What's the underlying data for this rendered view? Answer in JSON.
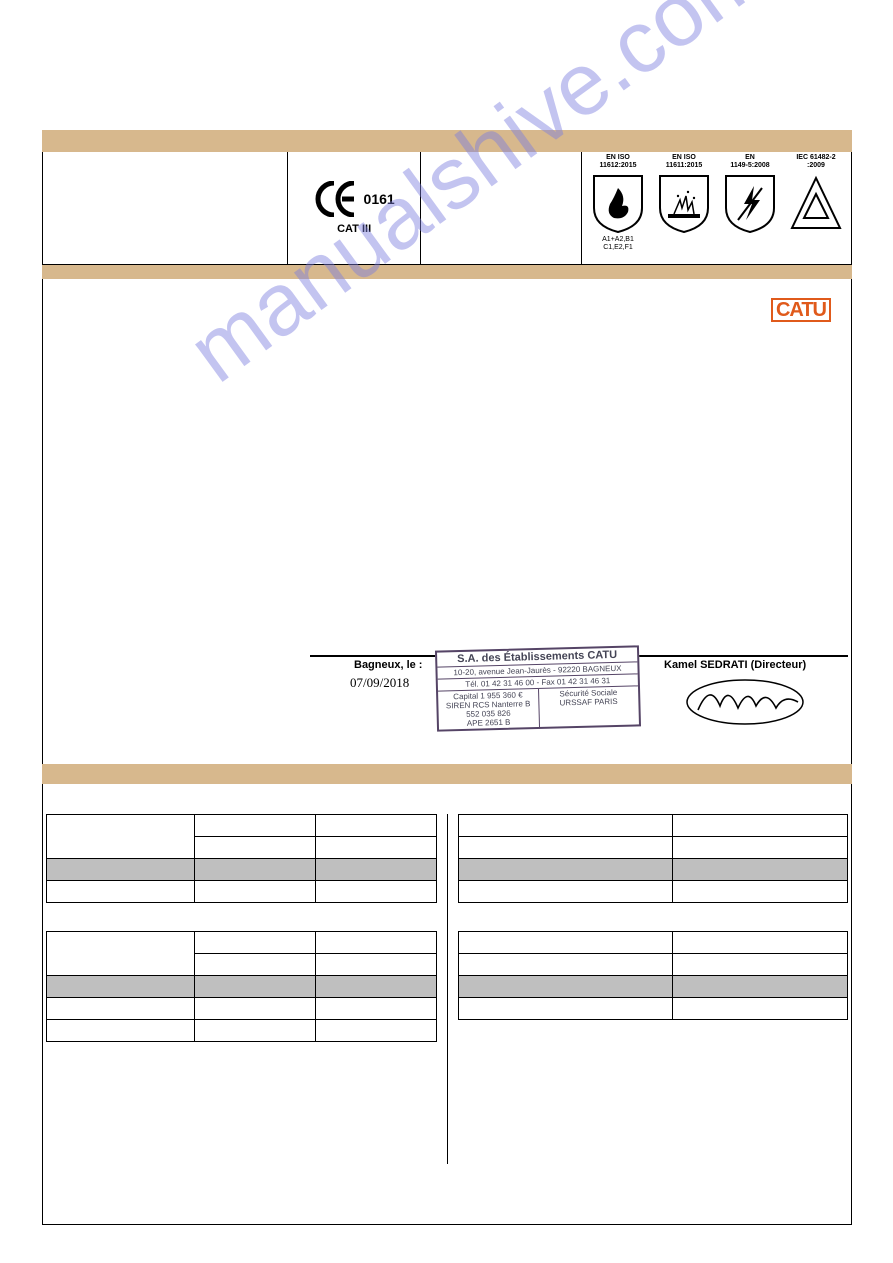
{
  "colors": {
    "tan": "#d7b88d",
    "logo": "#e05a1b",
    "watermark": "#7c7ee0",
    "grey_row": "#bfbfbf",
    "black": "#000000",
    "white": "#ffffff"
  },
  "header": {
    "ce_number": "0161",
    "ce_category": "CAT III",
    "icons": [
      {
        "standard": "EN ISO\n11612:2015",
        "glyph": "flame",
        "sub": "A1+A2,B1\nC1,E2,F1"
      },
      {
        "standard": "EN ISO\n11611:2015",
        "glyph": "welding",
        "sub": ""
      },
      {
        "standard": "EN\n1149-5:2008",
        "glyph": "antistatic",
        "sub": ""
      },
      {
        "standard": "IEC 61482-2\n:2009",
        "glyph": "arc",
        "sub": ""
      }
    ]
  },
  "logo_text": "CATU",
  "watermark_text": "manualshive.com",
  "signature": {
    "place_label": "Bagneux, le :",
    "date": "07/09/2018",
    "role": "Kamel SEDRATI (Directeur)",
    "stamp": {
      "company": "S.A. des Établissements CATU",
      "address": "10-20, avenue Jean-Jaurès - 92220 BAGNEUX",
      "phone": "Tél. 01 42 31 46 00 - Fax 01 42 31 46 31",
      "left": "Capital 1 955 360 €\nSIREN RCS Nanterre B 552 035 826\nAPE 2651 B",
      "right": "Sécurité Sociale\nURSSAF PARIS"
    }
  },
  "tables": {
    "t1": {
      "type": "table",
      "cols": 3,
      "rows": [
        [
          "",
          "",
          ""
        ],
        [
          "",
          "",
          ""
        ],
        [
          "",
          "",
          ""
        ],
        [
          "",
          "",
          ""
        ]
      ],
      "shaded_row_index": 2,
      "merged_first_col_top": true
    },
    "t2": {
      "type": "table",
      "cols": 2,
      "rows": [
        [
          "",
          ""
        ],
        [
          "",
          ""
        ],
        [
          "",
          ""
        ],
        [
          "",
          ""
        ]
      ],
      "shaded_row_index": 2,
      "merged_first_col_top": false
    },
    "t3": {
      "type": "table",
      "cols": 3,
      "rows": [
        [
          "",
          "",
          ""
        ],
        [
          "",
          "",
          ""
        ],
        [
          "",
          "",
          ""
        ],
        [
          "",
          "",
          ""
        ],
        [
          "",
          "",
          ""
        ]
      ],
      "shaded_row_index": 2,
      "merged_first_col_top": true
    },
    "t4": {
      "type": "table",
      "cols": 2,
      "rows": [
        [
          "",
          ""
        ],
        [
          "",
          ""
        ],
        [
          "",
          ""
        ],
        [
          "",
          ""
        ]
      ],
      "shaded_row_index": 2,
      "merged_first_col_top": false
    }
  }
}
